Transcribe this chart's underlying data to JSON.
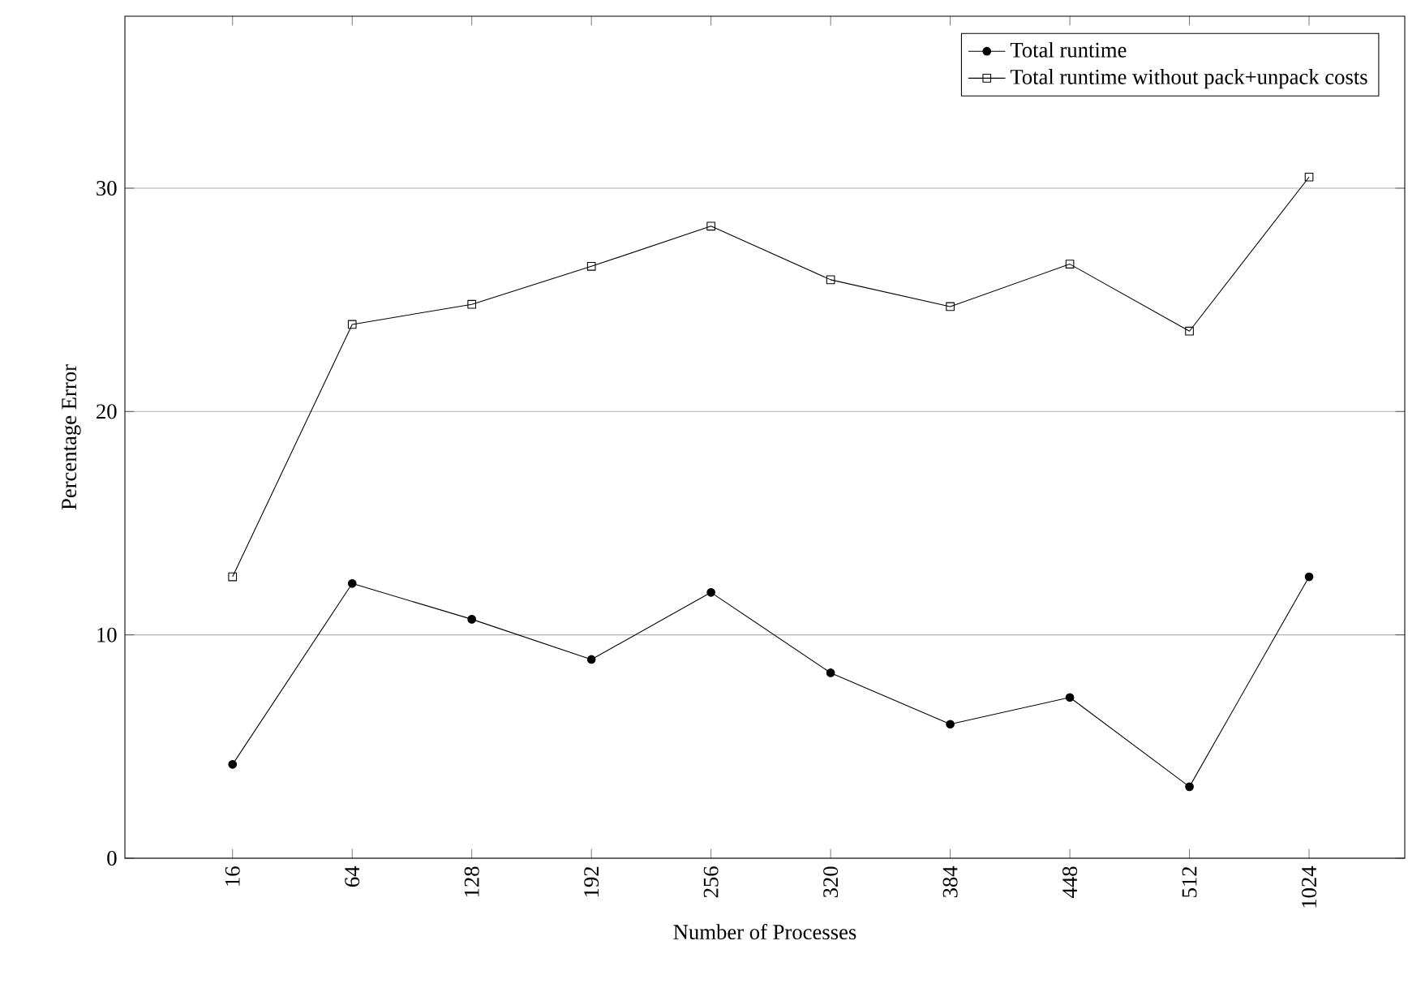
{
  "chart_data": {
    "type": "line",
    "xlabel": "Number of Processes",
    "ylabel": "Percentage Error",
    "categories": [
      "16",
      "64",
      "128",
      "192",
      "256",
      "320",
      "384",
      "448",
      "512",
      "1024"
    ],
    "series": [
      {
        "name": "Total runtime",
        "color": "#000000",
        "marker": "circle",
        "values": [
          4.2,
          12.3,
          10.7,
          8.9,
          11.9,
          8.3,
          6.0,
          7.2,
          3.2,
          12.6
        ]
      },
      {
        "name": "Total runtime without pack+unpack costs",
        "color": "#000000",
        "marker": "square",
        "values": [
          12.6,
          23.9,
          24.8,
          26.5,
          28.3,
          25.9,
          24.7,
          26.6,
          23.6,
          30.5
        ]
      }
    ],
    "ylim": [
      0,
      37.7
    ],
    "yticks": [
      0,
      10,
      20,
      30
    ],
    "grid": "y",
    "legend": "top right",
    "line_style": "solid"
  }
}
